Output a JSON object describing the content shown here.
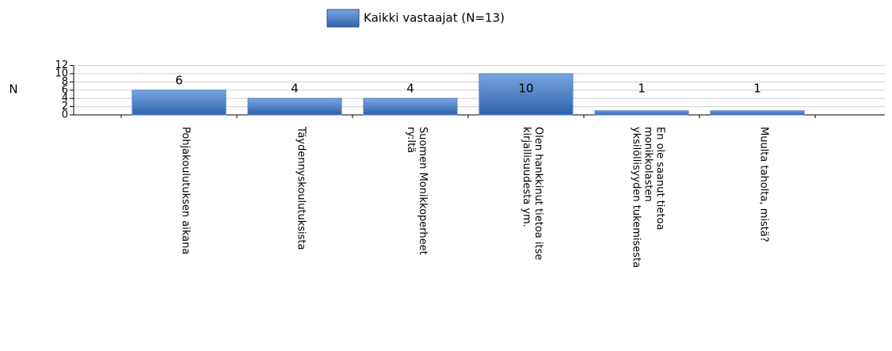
{
  "chart_data": {
    "type": "bar",
    "ylabel": "N",
    "categories": [
      [
        "Pohjakoulutuksen aikana"
      ],
      [
        "Täydennyskoulutuksista"
      ],
      [
        "Suomen Monikkoperheet",
        "ry:ltä"
      ],
      [
        "Olen hankkinut tietoa itse",
        "kirjallisuudesta ym."
      ],
      [
        "En ole saanut tietoa",
        "monikkolasten",
        "yksilöllisyyden tukemisesta"
      ],
      [
        "Muulta taholta, mistä?"
      ]
    ],
    "series": [
      {
        "name": "Kaikki vastaajat (N=13)",
        "color": "#4a7cc7",
        "values": [
          6,
          4,
          4,
          10,
          1,
          1
        ]
      }
    ],
    "ylim": [
      0,
      12
    ],
    "yticks": [
      0,
      2,
      4,
      6,
      8,
      10,
      12
    ],
    "grid": true,
    "legend": "top"
  }
}
